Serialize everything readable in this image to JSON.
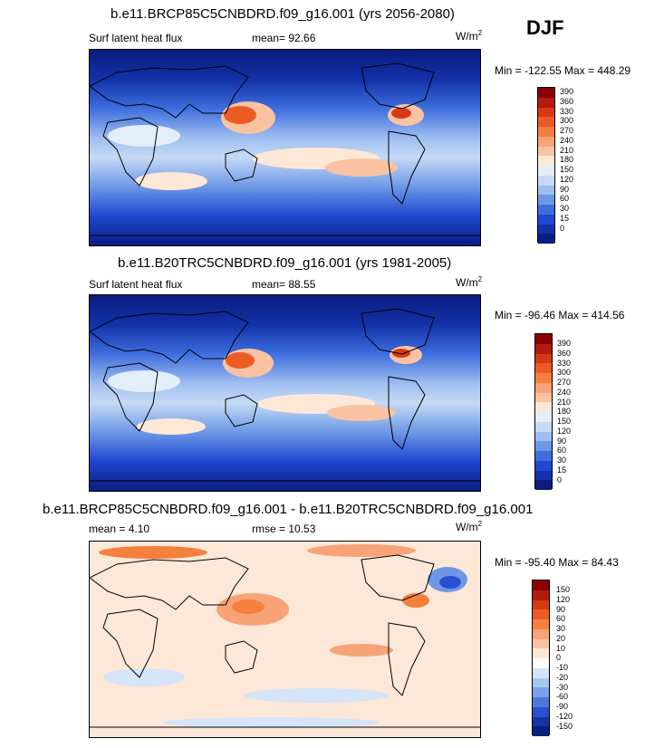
{
  "season": "DJF",
  "panels": [
    {
      "id": "future",
      "title": "b.e11.BRCP85C5CNBDRD.f09_g16.001 (yrs 2056-2080)",
      "left_label": "Surf latent heat flux",
      "center_label": "mean=  92.66",
      "units": "W/m",
      "units_sup": "2",
      "minmax": "Min = -122.55 Max = 448.29",
      "colorbar": {
        "labels": [
          "390",
          "360",
          "330",
          "300",
          "270",
          "240",
          "210",
          "180",
          "150",
          "120",
          "90",
          "60",
          "30",
          "15",
          "0"
        ],
        "colors": [
          "#8b0000",
          "#b31b0c",
          "#d73a12",
          "#ed5b25",
          "#f5803e",
          "#f7a277",
          "#f9c3a3",
          "#fde8d8",
          "#e3eefb",
          "#c6daf5",
          "#9ebdf0",
          "#6d98e6",
          "#3e6ede",
          "#1f47d0",
          "#1331a8",
          "#0a1d80"
        ]
      }
    },
    {
      "id": "present",
      "title": "b.e11.B20TRC5CNBDRD.f09_g16.001 (yrs 1981-2005)",
      "left_label": "Surf latent heat flux",
      "center_label": "mean=  88.55",
      "units": "W/m",
      "units_sup": "2",
      "minmax": "Min = -96.46 Max = 414.56",
      "colorbar": {
        "labels": [
          "390",
          "360",
          "330",
          "300",
          "270",
          "240",
          "210",
          "180",
          "150",
          "120",
          "90",
          "60",
          "30",
          "15",
          "0"
        ],
        "colors": [
          "#8b0000",
          "#b31b0c",
          "#d73a12",
          "#ed5b25",
          "#f5803e",
          "#f7a277",
          "#f9c3a3",
          "#fde8d8",
          "#e3eefb",
          "#c6daf5",
          "#9ebdf0",
          "#6d98e6",
          "#3e6ede",
          "#1f47d0",
          "#1331a8",
          "#0a1d80"
        ]
      }
    },
    {
      "id": "difference",
      "title": "b.e11.BRCP85C5CNBDRD.f09_g16.001 - b.e11.B20TRC5CNBDRD.f09_g16.001",
      "left_label": "mean =  4.10",
      "center_label": "rmse =  10.53",
      "units": "W/m",
      "units_sup": "2",
      "minmax": "Min = -95.40 Max = 84.43",
      "colorbar": {
        "labels": [
          "150",
          "120",
          "90",
          "60",
          "30",
          "20",
          "10",
          "0",
          "-10",
          "-20",
          "-30",
          "-60",
          "-90",
          "-120",
          "-150"
        ],
        "colors": [
          "#8b0000",
          "#b31b0c",
          "#d73a12",
          "#ed5b25",
          "#f5803e",
          "#f7a277",
          "#f9c3a3",
          "#fde8d8",
          "#ffffff",
          "#d5e4f8",
          "#a9c6f1",
          "#7aa2e8",
          "#4d78de",
          "#2a4fd1",
          "#1733a8",
          "#0a1d80"
        ]
      }
    }
  ]
}
